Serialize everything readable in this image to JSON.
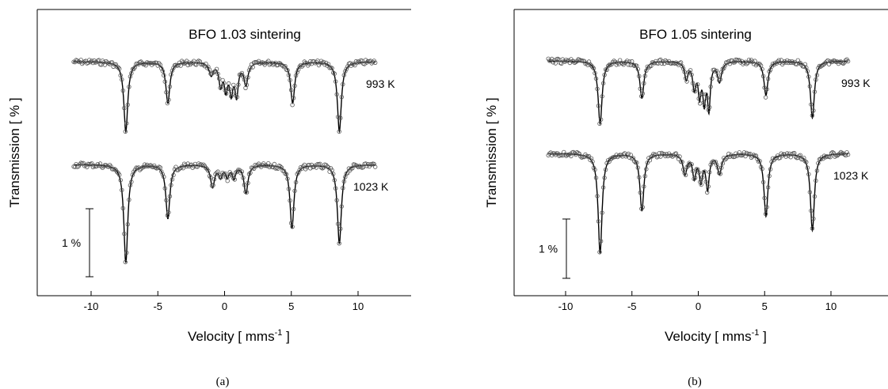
{
  "chart_data": [
    {
      "type": "scatter",
      "panel_label": "(a)",
      "title": "BFO 1.03 sintering",
      "xlabel": "Velocity  [ mms",
      "xlabel_sup": "-1",
      "xlabel_end": " ]",
      "ylabel": "Transmission  [ % ]",
      "xlim": [
        -14.5,
        15
      ],
      "xticks": [
        -10,
        -5,
        0,
        5,
        10
      ],
      "xtick_labels": [
        "-10",
        "-5",
        "0",
        "5",
        "10"
      ],
      "scale_bar_label": "1 %",
      "scale_bar_percent": 1,
      "series": [
        {
          "name": "993 K",
          "baseline_percent": 100,
          "lines": [
            {
              "x": -7.4,
              "depth_percent": 1.1,
              "width": 0.18
            },
            {
              "x": -4.25,
              "depth_percent": 0.65,
              "width": 0.18
            },
            {
              "x": -1.0,
              "depth_percent": 0.2,
              "width": 0.18
            },
            {
              "x": -0.3,
              "depth_percent": 0.35,
              "width": 0.15
            },
            {
              "x": 0.1,
              "depth_percent": 0.4,
              "width": 0.15
            },
            {
              "x": 0.5,
              "depth_percent": 0.45,
              "width": 0.15
            },
            {
              "x": 0.9,
              "depth_percent": 0.5,
              "width": 0.15
            },
            {
              "x": 1.6,
              "depth_percent": 0.35,
              "width": 0.18
            },
            {
              "x": 5.1,
              "depth_percent": 0.65,
              "width": 0.18
            },
            {
              "x": 8.6,
              "depth_percent": 1.1,
              "width": 0.18
            }
          ]
        },
        {
          "name": "1023 K",
          "baseline_percent": 100,
          "lines": [
            {
              "x": -7.4,
              "depth_percent": 1.55,
              "width": 0.18
            },
            {
              "x": -4.25,
              "depth_percent": 0.85,
              "width": 0.18
            },
            {
              "x": -0.9,
              "depth_percent": 0.35,
              "width": 0.18
            },
            {
              "x": -0.3,
              "depth_percent": 0.18,
              "width": 0.15
            },
            {
              "x": 0.2,
              "depth_percent": 0.18,
              "width": 0.15
            },
            {
              "x": 0.7,
              "depth_percent": 0.2,
              "width": 0.15
            },
            {
              "x": 1.6,
              "depth_percent": 0.45,
              "width": 0.18
            },
            {
              "x": 5.05,
              "depth_percent": 1.0,
              "width": 0.18
            },
            {
              "x": 8.6,
              "depth_percent": 1.25,
              "width": 0.18
            }
          ]
        }
      ]
    },
    {
      "type": "scatter",
      "panel_label": "(b)",
      "title": "BFO 1.05 sintering",
      "xlabel": "Velocity  [ mms",
      "xlabel_sup": "-1",
      "xlabel_end": " ]",
      "ylabel": "Transmission  [ % ]",
      "xlim": [
        -14.5,
        15
      ],
      "xticks": [
        -10,
        -5,
        0,
        5,
        10
      ],
      "xtick_labels": [
        "-10",
        "-5",
        "0",
        "5",
        "10"
      ],
      "scale_bar_label": "1 %",
      "scale_bar_percent": 1,
      "series": [
        {
          "name": "993 K",
          "baseline_percent": 100,
          "lines": [
            {
              "x": -7.4,
              "depth_percent": 1.1,
              "width": 0.18
            },
            {
              "x": -4.25,
              "depth_percent": 0.65,
              "width": 0.18
            },
            {
              "x": -0.9,
              "depth_percent": 0.3,
              "width": 0.15
            },
            {
              "x": -0.3,
              "depth_percent": 0.45,
              "width": 0.15
            },
            {
              "x": 0.1,
              "depth_percent": 0.55,
              "width": 0.13
            },
            {
              "x": 0.45,
              "depth_percent": 0.65,
              "width": 0.13
            },
            {
              "x": 0.8,
              "depth_percent": 0.8,
              "width": 0.13
            },
            {
              "x": 1.6,
              "depth_percent": 0.35,
              "width": 0.18
            },
            {
              "x": 5.1,
              "depth_percent": 0.6,
              "width": 0.18
            },
            {
              "x": 8.6,
              "depth_percent": 1.0,
              "width": 0.18
            }
          ]
        },
        {
          "name": "1023 K",
          "baseline_percent": 100,
          "lines": [
            {
              "x": -7.4,
              "depth_percent": 1.75,
              "width": 0.18
            },
            {
              "x": -4.25,
              "depth_percent": 1.0,
              "width": 0.18
            },
            {
              "x": -1.0,
              "depth_percent": 0.35,
              "width": 0.18
            },
            {
              "x": -0.3,
              "depth_percent": 0.4,
              "width": 0.15
            },
            {
              "x": 0.2,
              "depth_percent": 0.45,
              "width": 0.15
            },
            {
              "x": 0.7,
              "depth_percent": 0.6,
              "width": 0.15
            },
            {
              "x": 1.6,
              "depth_percent": 0.35,
              "width": 0.18
            },
            {
              "x": 5.1,
              "depth_percent": 1.1,
              "width": 0.18
            },
            {
              "x": 8.6,
              "depth_percent": 1.35,
              "width": 0.18
            }
          ]
        }
      ]
    }
  ]
}
